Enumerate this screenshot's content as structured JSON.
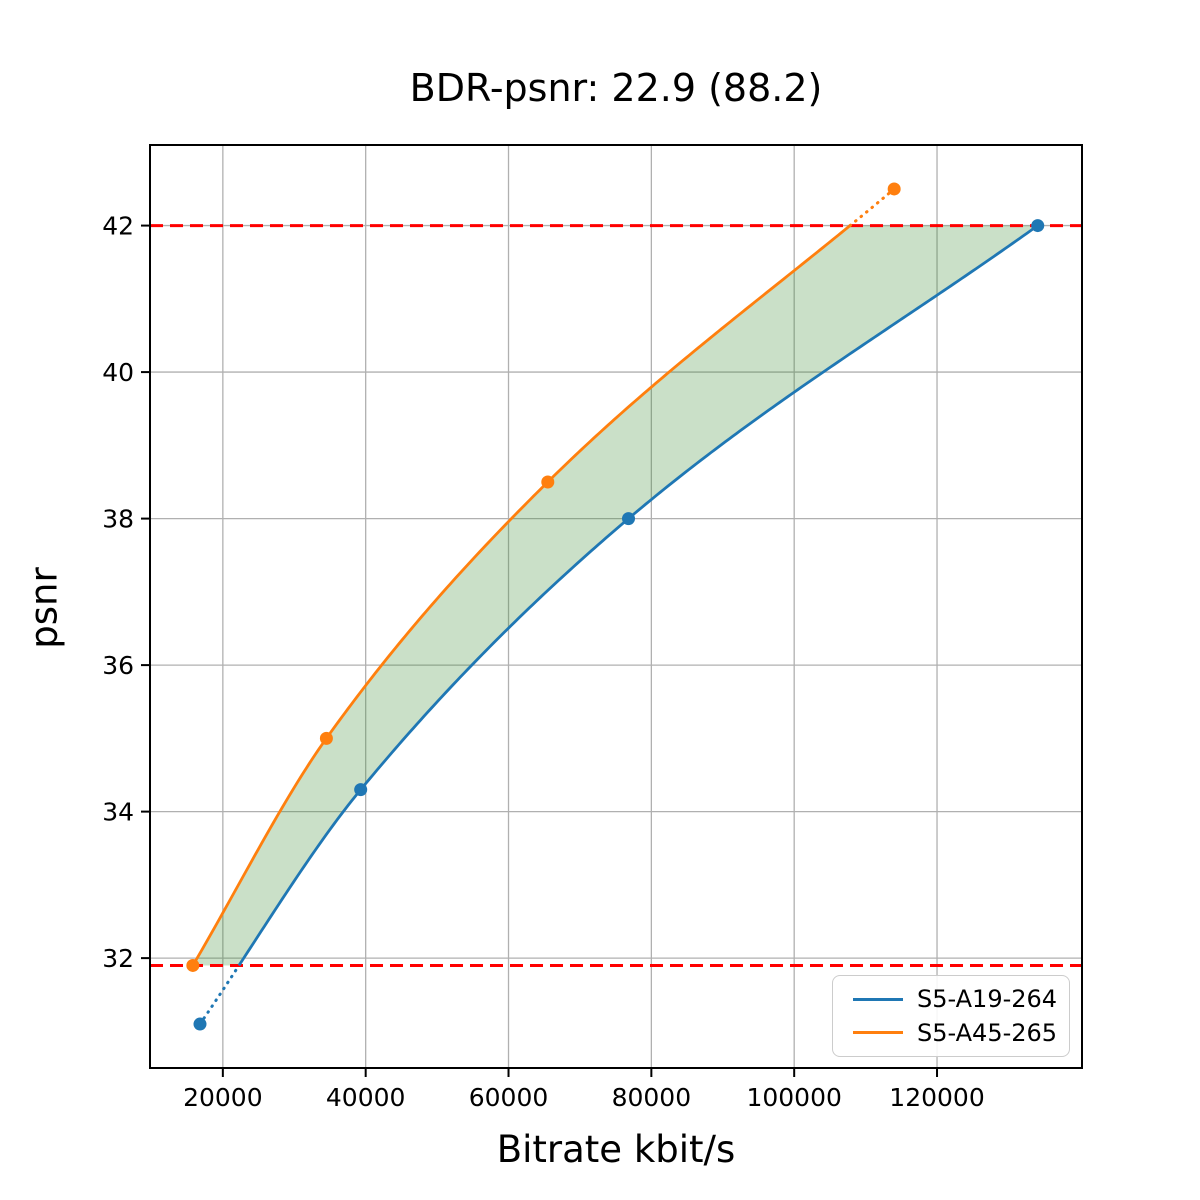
{
  "chart_data": {
    "type": "line",
    "title": "BDR-psnr: 22.9 (88.2)",
    "xlabel": "Bitrate kbit/s",
    "ylabel": "psnr",
    "xlim": [
      9800,
      140300
    ],
    "ylim": [
      30.5,
      43.1
    ],
    "xticks": [
      "20000",
      "40000",
      "60000",
      "80000",
      "100000",
      "120000"
    ],
    "xtick_values": [
      20000,
      40000,
      60000,
      80000,
      100000,
      120000
    ],
    "yticks": [
      "32",
      "34",
      "36",
      "38",
      "40",
      "42"
    ],
    "ytick_values": [
      32,
      34,
      36,
      38,
      40,
      42
    ],
    "grid": true,
    "legend_position": "lower right",
    "series": [
      {
        "name": "S5-A19-264",
        "color": "#1f77b4",
        "points": [
          [
            16800,
            31.1
          ],
          [
            39300,
            34.3
          ],
          [
            76800,
            38.0
          ],
          [
            134100,
            42.0
          ]
        ]
      },
      {
        "name": "S5-A45-265",
        "color": "#ff7f0e",
        "points": [
          [
            15800,
            31.9
          ],
          [
            34500,
            35.0
          ],
          [
            65500,
            38.5
          ],
          [
            114000,
            42.5
          ]
        ]
      }
    ],
    "overlap_psnr_range": [
      31.9,
      42.0
    ],
    "hlines": [
      {
        "y": 42.0,
        "color": "#ff0000",
        "style": "dashed"
      },
      {
        "y": 31.9,
        "color": "#ff0000",
        "style": "dashed"
      }
    ],
    "shaded_region": {
      "description": "area between the two rate-distortion curves clipped to overlap psnr range",
      "fill_color": "rgba(60,140,50,0.27)"
    },
    "grid_color": "#b0b0b0",
    "out_of_range_segment_style": "dotted"
  }
}
